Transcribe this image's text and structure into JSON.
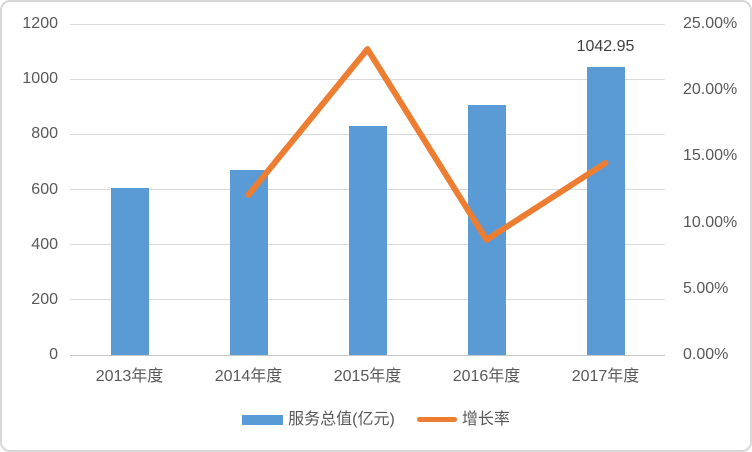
{
  "chart_data": {
    "type": "bar",
    "subtype": "combo-bar-line-dual-axis",
    "title": "",
    "categories": [
      "2013年度",
      "2014年度",
      "2015年度",
      "2016年度",
      "2017年度"
    ],
    "series": [
      {
        "name": "服务总值(亿元)",
        "type": "bar",
        "axis": "left",
        "color": "#5b9bd5",
        "values": [
          605,
          672,
          830,
          906,
          1042.95
        ]
      },
      {
        "name": "增长率",
        "type": "line",
        "axis": "right",
        "color": "#ed7d31",
        "values": [
          null,
          12.1,
          23.1,
          8.7,
          14.5
        ]
      }
    ],
    "data_labels": [
      {
        "series": 0,
        "category_index": 4,
        "text": "1042.95"
      }
    ],
    "left_axis": {
      "min": 0,
      "max": 1200,
      "step": 200,
      "ticks": [
        "0",
        "200",
        "400",
        "600",
        "800",
        "1000",
        "1200"
      ]
    },
    "right_axis": {
      "min": 0,
      "max": 25,
      "step": 5,
      "ticks": [
        "0.00%",
        "5.00%",
        "10.00%",
        "15.00%",
        "20.00%",
        "25.00%"
      ]
    },
    "grid": true,
    "legend_position": "bottom-center"
  },
  "colors": {
    "bar": "#5b9bd5",
    "line": "#ed7d31",
    "tick_text": "#595959",
    "data_label_text": "#404040",
    "gridline": "#d9d9d9",
    "frame_border": "#d8d8d8"
  }
}
